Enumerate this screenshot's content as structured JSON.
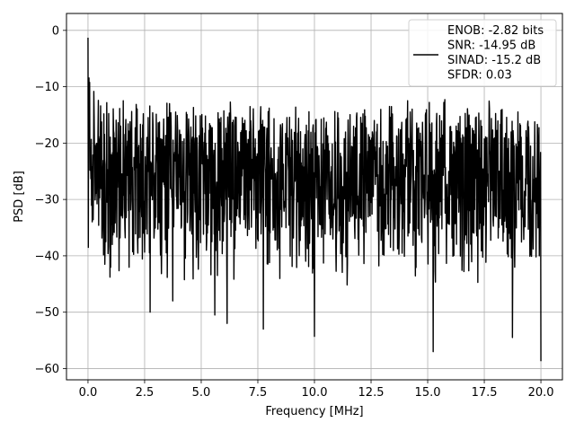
{
  "chart_data": {
    "type": "line",
    "title": "",
    "xlabel": "Frequency [MHz]",
    "ylabel": "PSD [dB]",
    "xlim": [
      -0.95,
      20.95
    ],
    "ylim": [
      -62,
      3
    ],
    "xticks": [
      0.0,
      2.5,
      5.0,
      7.5,
      10.0,
      12.5,
      15.0,
      17.5,
      20.0
    ],
    "xtick_labels": [
      "0.0",
      "2.5",
      "5.0",
      "7.5",
      "10.0",
      "12.5",
      "15.0",
      "17.5",
      "20.0"
    ],
    "yticks": [
      0,
      -10,
      -20,
      -30,
      -40,
      -50,
      -60
    ],
    "ytick_labels": [
      "0",
      "−10",
      "−20",
      "−30",
      "−40",
      "−50",
      "−60"
    ],
    "grid": true,
    "legend_position": "top-right",
    "series_color": "#000000",
    "series": [
      {
        "color": "#000000",
        "note_on_data": "dense noise-like spectrum; values estimated",
        "x_range": [
          0,
          20
        ],
        "start_value": 0,
        "upper_envelope_approx": -15,
        "lower_envelope_approx": -38
      }
    ],
    "legend_entries": [
      "ENOB: -2.82 bits",
      "SNR: -14.95 dB",
      "SINAD: -15.2 dB",
      "SFDR: 0.03"
    ],
    "notable_dips": [
      {
        "x": 0.02,
        "y": -38.5
      },
      {
        "x": 0.75,
        "y": -41.5
      },
      {
        "x": 2.75,
        "y": -50.0
      },
      {
        "x": 3.75,
        "y": -48.0
      },
      {
        "x": 5.6,
        "y": -50.5
      },
      {
        "x": 6.15,
        "y": -52.0
      },
      {
        "x": 7.75,
        "y": -53.0
      },
      {
        "x": 10.0,
        "y": -54.3
      },
      {
        "x": 15.25,
        "y": -57.0
      },
      {
        "x": 18.75,
        "y": -54.5
      },
      {
        "x": 20.0,
        "y": -58.7
      }
    ]
  }
}
